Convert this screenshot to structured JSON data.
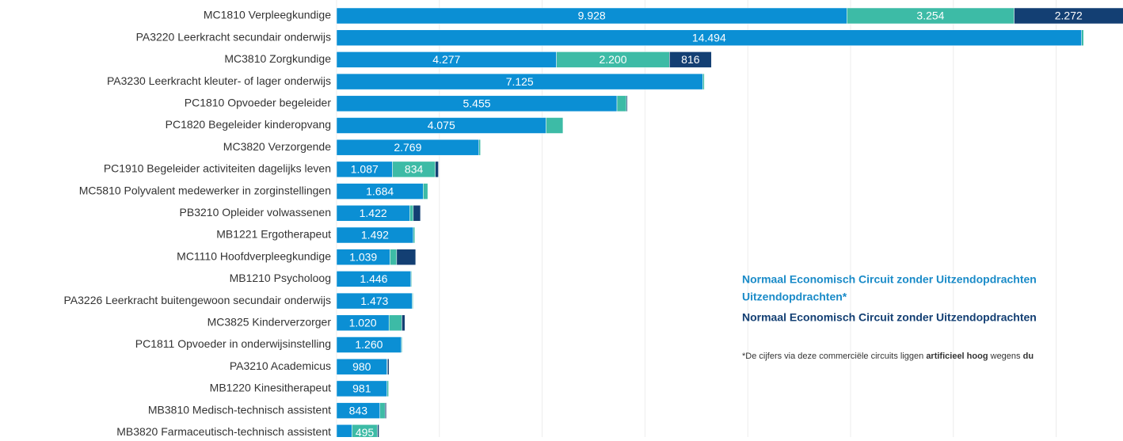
{
  "chart_data": {
    "type": "stacked-barh",
    "categories": [
      "MC1810 Verpleegkundige",
      "PA3220 Leerkracht secundair onderwijs",
      "MC3810 Zorgkundige",
      "PA3230 Leerkracht kleuter- of lager onderwijs",
      "PC1810 Opvoeder begeleider",
      "PC1820 Begeleider kinderopvang",
      "MC3820 Verzorgende",
      "PC1910 Begeleider activiteiten dagelijks leven",
      "MC5810 Polyvalent medewerker in zorginstellingen",
      "PB3210 Opleider volwassenen",
      "MB1221 Ergotherapeut",
      "MC1110 Hoofdverpleegkundige",
      "MB1210 Psycholoog",
      "PA3226 Leerkracht buitengewoon secundair onderwijs",
      "MC3825 Kinderverzorger",
      "PC1811 Opvoeder in onderwijsinstelling",
      "PA3210 Academicus",
      "MB1220 Kinesitherapeut",
      "MB3810 Medisch-technisch assistent",
      "MB3820 Farmaceutisch-technisch assistent"
    ],
    "series": [
      {
        "name": "Normaal Economisch Circuit zonder Uitzendopdrachten",
        "color": "#0b8fd4",
        "values": [
          9928,
          14494,
          4277,
          7125,
          5455,
          4075,
          2769,
          1087,
          1684,
          1422,
          1492,
          1039,
          1446,
          1473,
          1020,
          1260,
          980,
          981,
          843,
          300
        ],
        "value_labels": [
          "9.928",
          "14.494",
          "4.277",
          "7.125",
          "5.455",
          "4.075",
          "2.769",
          "1.087",
          "1.684",
          "1.422",
          "1.492",
          "1.039",
          "1.446",
          "1.473",
          "1.020",
          "1.260",
          "980",
          "981",
          "843",
          null
        ]
      },
      {
        "name": "Uitzendopdrachten*",
        "color": "#3dbba6",
        "values": [
          3254,
          40,
          2200,
          30,
          185,
          330,
          30,
          834,
          90,
          70,
          30,
          130,
          15,
          15,
          250,
          15,
          10,
          30,
          100,
          495
        ],
        "value_labels": [
          "3.254",
          null,
          "2.200",
          null,
          null,
          null,
          null,
          "834",
          null,
          null,
          null,
          null,
          null,
          null,
          null,
          null,
          null,
          null,
          null,
          "495"
        ]
      },
      {
        "name": "Normaal Economisch Circuit zonder Uitzendopdrachten",
        "color": "#133f73",
        "values": [
          2272,
          0,
          816,
          0,
          20,
          0,
          0,
          60,
          0,
          140,
          0,
          370,
          0,
          0,
          60,
          0,
          30,
          0,
          25,
          30
        ],
        "value_labels": [
          "2.272",
          null,
          "816",
          null,
          null,
          null,
          null,
          null,
          null,
          null,
          null,
          null,
          null,
          null,
          null,
          null,
          null,
          null,
          null,
          null
        ]
      }
    ],
    "xlim": [
      0,
      15300
    ],
    "xticks": [
      0,
      2000,
      4000,
      6000,
      8000,
      10000,
      12000,
      14000
    ],
    "grid": true,
    "note_parts": [
      "*De cijfers via deze commerciële circuits liggen ",
      "artificieel hoog",
      " wegens ",
      "du"
    ]
  }
}
